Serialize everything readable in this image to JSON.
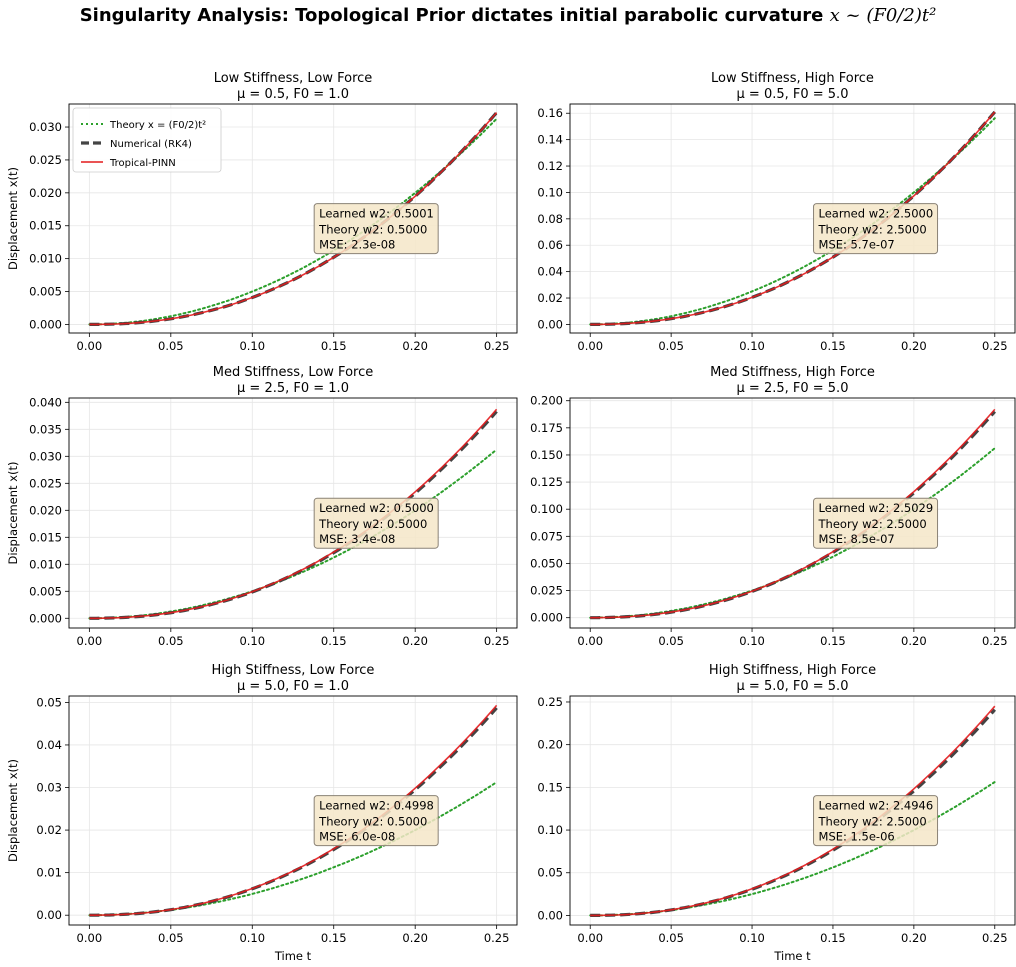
{
  "figure": {
    "title": "Singularity Analysis: Topological Prior dictates initial parabolic curvature",
    "title_math": "x ~ (F0/2)t²"
  },
  "colors": {
    "theory": "#2ca02c",
    "numerical": "#444444",
    "pinn": "#e31a1c",
    "annotation_bg": "#f5e6c8",
    "annotation_border": "#8a8276",
    "grid": "#e6e6e6"
  },
  "legend": {
    "location": "upper-left",
    "entries": [
      {
        "key": "theory",
        "label": "Theory x = (F0/2)t²",
        "style": "dotted"
      },
      {
        "key": "numerical",
        "label": "Numerical (RK4)",
        "style": "dashed"
      },
      {
        "key": "pinn",
        "label": "Tropical-PINN",
        "style": "solid"
      }
    ]
  },
  "chart_data": [
    {
      "type": "line",
      "title": "Low Stiffness, Low Force",
      "subtitle": "μ = 0.5, F0 = 1.0",
      "mu": 0.5,
      "F0": 1.0,
      "xlabel": "",
      "ylabel": "Displacement x(t)",
      "xlim": [
        -0.0125,
        0.2625
      ],
      "ylim": [
        -0.0013,
        0.0335
      ],
      "xticks": [
        "0.00",
        "0.05",
        "0.10",
        "0.15",
        "0.20",
        "0.25"
      ],
      "yticks": [
        "0.000",
        "0.005",
        "0.010",
        "0.015",
        "0.020",
        "0.025",
        "0.030"
      ],
      "x_range": [
        0.0,
        0.25
      ],
      "series": [
        {
          "name": "Theory x = (F0/2)t²",
          "coeff": 0.5
        },
        {
          "name": "Numerical (RK4)",
          "coeff": 0.5,
          "end_value": 0.0322
        },
        {
          "name": "Tropical-PINN",
          "coeff": 0.5001,
          "end_value": 0.0322
        }
      ],
      "annotation": {
        "learned": "Learned w2: 0.5001",
        "theory": "Theory w2: 0.5000",
        "mse": "MSE: 2.3e-08"
      },
      "show_legend": true
    },
    {
      "type": "line",
      "title": "Low Stiffness, High Force",
      "subtitle": "μ = 0.5, F0 = 5.0",
      "mu": 0.5,
      "F0": 5.0,
      "xlabel": "",
      "ylabel": "",
      "xlim": [
        -0.0125,
        0.2625
      ],
      "ylim": [
        -0.0065,
        0.167
      ],
      "xticks": [
        "0.00",
        "0.05",
        "0.10",
        "0.15",
        "0.20",
        "0.25"
      ],
      "yticks": [
        "0.00",
        "0.02",
        "0.04",
        "0.06",
        "0.08",
        "0.10",
        "0.12",
        "0.14",
        "0.16"
      ],
      "x_range": [
        0.0,
        0.25
      ],
      "series": [
        {
          "name": "Theory x = (F0/2)t²",
          "coeff": 2.5
        },
        {
          "name": "Numerical (RK4)",
          "coeff": 2.5,
          "end_value": 0.161
        },
        {
          "name": "Tropical-PINN",
          "coeff": 2.5,
          "end_value": 0.161
        }
      ],
      "annotation": {
        "learned": "Learned w2: 2.5000",
        "theory": "Theory w2: 2.5000",
        "mse": "MSE: 5.7e-07"
      },
      "show_legend": false
    },
    {
      "type": "line",
      "title": "Med Stiffness, Low Force",
      "subtitle": "μ = 2.5, F0 = 1.0",
      "mu": 2.5,
      "F0": 1.0,
      "xlabel": "",
      "ylabel": "Displacement x(t)",
      "xlim": [
        -0.0125,
        0.2625
      ],
      "ylim": [
        -0.0018,
        0.0408
      ],
      "xticks": [
        "0.00",
        "0.05",
        "0.10",
        "0.15",
        "0.20",
        "0.25"
      ],
      "yticks": [
        "0.000",
        "0.005",
        "0.010",
        "0.015",
        "0.020",
        "0.025",
        "0.030",
        "0.035",
        "0.040"
      ],
      "x_range": [
        0.0,
        0.25
      ],
      "series": [
        {
          "name": "Theory x = (F0/2)t²",
          "coeff": 0.5
        },
        {
          "name": "Numerical (RK4)",
          "coeff": 0.5,
          "end_value": 0.0383
        },
        {
          "name": "Tropical-PINN",
          "coeff": 0.5,
          "end_value": 0.0387
        }
      ],
      "annotation": {
        "learned": "Learned w2: 0.5000",
        "theory": "Theory w2: 0.5000",
        "mse": "MSE: 3.4e-08"
      },
      "show_legend": false
    },
    {
      "type": "line",
      "title": "Med Stiffness, High Force",
      "subtitle": "μ = 2.5, F0 = 5.0",
      "mu": 2.5,
      "F0": 5.0,
      "xlabel": "",
      "ylabel": "",
      "xlim": [
        -0.0125,
        0.2625
      ],
      "ylim": [
        -0.0095,
        0.2025
      ],
      "xticks": [
        "0.00",
        "0.05",
        "0.10",
        "0.15",
        "0.20",
        "0.25"
      ],
      "yticks": [
        "0.000",
        "0.025",
        "0.050",
        "0.075",
        "0.100",
        "0.125",
        "0.150",
        "0.175",
        "0.200"
      ],
      "x_range": [
        0.0,
        0.25
      ],
      "series": [
        {
          "name": "Theory x = (F0/2)t²",
          "coeff": 2.5
        },
        {
          "name": "Numerical (RK4)",
          "coeff": 2.5,
          "end_value": 0.19
        },
        {
          "name": "Tropical-PINN",
          "coeff": 2.5029,
          "end_value": 0.192
        }
      ],
      "annotation": {
        "learned": "Learned w2: 2.5029",
        "theory": "Theory w2: 2.5000",
        "mse": "MSE: 8.5e-07"
      },
      "show_legend": false
    },
    {
      "type": "line",
      "title": "High Stiffness, Low Force",
      "subtitle": "μ = 5.0, F0 = 1.0",
      "mu": 5.0,
      "F0": 1.0,
      "xlabel": "Time t",
      "ylabel": "Displacement x(t)",
      "xlim": [
        -0.0125,
        0.2625
      ],
      "ylim": [
        -0.0023,
        0.0515
      ],
      "xticks": [
        "0.00",
        "0.05",
        "0.10",
        "0.15",
        "0.20",
        "0.25"
      ],
      "yticks": [
        "0.00",
        "0.01",
        "0.02",
        "0.03",
        "0.04",
        "0.05"
      ],
      "x_range": [
        0.0,
        0.25
      ],
      "series": [
        {
          "name": "Theory x = (F0/2)t²",
          "coeff": 0.5
        },
        {
          "name": "Numerical (RK4)",
          "coeff": 0.5,
          "end_value": 0.0487
        },
        {
          "name": "Tropical-PINN",
          "coeff": 0.4998,
          "end_value": 0.0493
        }
      ],
      "annotation": {
        "learned": "Learned w2: 0.4998",
        "theory": "Theory w2: 0.5000",
        "mse": "MSE: 6.0e-08"
      },
      "show_legend": false
    },
    {
      "type": "line",
      "title": "High Stiffness, High Force",
      "subtitle": "μ = 5.0, F0 = 5.0",
      "mu": 5.0,
      "F0": 5.0,
      "xlabel": "Time t",
      "ylabel": "",
      "xlim": [
        -0.0125,
        0.2625
      ],
      "ylim": [
        -0.0112,
        0.257
      ],
      "xticks": [
        "0.00",
        "0.05",
        "0.10",
        "0.15",
        "0.20",
        "0.25"
      ],
      "yticks": [
        "0.00",
        "0.05",
        "0.10",
        "0.15",
        "0.20",
        "0.25"
      ],
      "x_range": [
        0.0,
        0.25
      ],
      "series": [
        {
          "name": "Theory x = (F0/2)t²",
          "coeff": 2.5
        },
        {
          "name": "Numerical (RK4)",
          "coeff": 2.5,
          "end_value": 0.241
        },
        {
          "name": "Tropical-PINN",
          "coeff": 2.4946,
          "end_value": 0.245
        }
      ],
      "annotation": {
        "learned": "Learned w2: 2.4946",
        "theory": "Theory w2: 2.5000",
        "mse": "MSE: 1.5e-06"
      },
      "show_legend": false
    }
  ]
}
